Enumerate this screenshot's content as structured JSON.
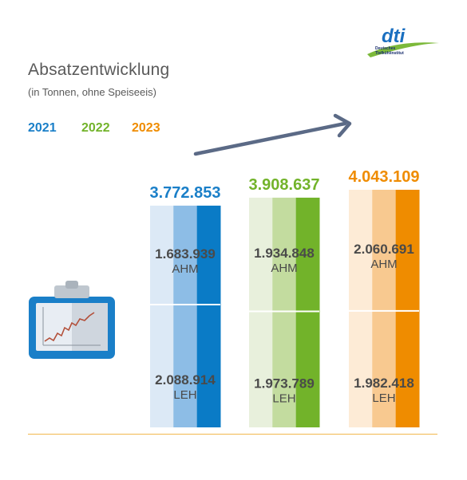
{
  "title": "Absatzentwicklung",
  "subtitle": "(in Tonnen, ohne Speiseeis)",
  "logo": {
    "text_main": "dti",
    "text_sub1": "Deutsches",
    "text_sub2": "Tiefkühlinstitut"
  },
  "colors": {
    "2021": "#1a7fc8",
    "2022": "#72b32a",
    "2023": "#ef8c00",
    "arrow": "#5b6a86",
    "baseline": "#f2b84d",
    "value_text": "#4a4a4a"
  },
  "chart_data": {
    "type": "bar",
    "title": "Absatzentwicklung",
    "subtitle": "(in Tonnen, ohne Speiseeis)",
    "categories": [
      "2021",
      "2022",
      "2023"
    ],
    "series": [
      {
        "name": "AHM",
        "values": [
          1683939,
          1934848,
          2060691
        ],
        "labels": [
          "1.683.939",
          "1.934.848",
          "2.060.691"
        ]
      },
      {
        "name": "LEH",
        "values": [
          2088914,
          1973789,
          1982418
        ],
        "labels": [
          "2.088.914",
          "1.973.789",
          "1.982.418"
        ]
      }
    ],
    "totals": [
      3772853,
      3908637,
      4043109
    ],
    "total_labels": [
      "3.772.853",
      "3.908.637",
      "4.043.109"
    ],
    "stacked": true,
    "legend": [
      "2021",
      "2022",
      "2023"
    ],
    "legend_position": "top-left"
  }
}
